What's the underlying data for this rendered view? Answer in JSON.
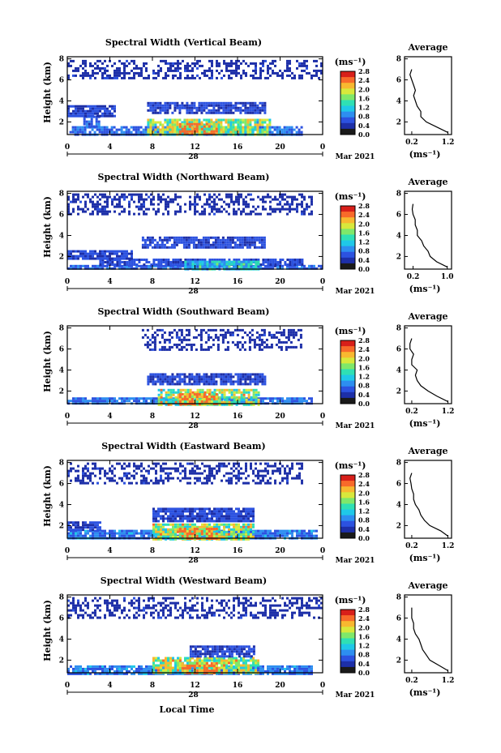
{
  "figure": {
    "xlabel": "Local Time",
    "date_day": "28",
    "date_month_year": "Mar 2021",
    "ylabel": "Height (km)",
    "units": "(ms⁻¹)",
    "avg_title": "Average",
    "avg_xlabel": "(ms⁻¹)"
  },
  "colormap": [
    "#1a1a1a",
    "#1d2fa8",
    "#2c52e0",
    "#2d8ef0",
    "#1fc8e8",
    "#2fe0b4",
    "#7fe86a",
    "#d8e83c",
    "#f8b830",
    "#f86a2a",
    "#d81f1a"
  ],
  "chart_data": [
    {
      "type": "heatmap",
      "title": "Spectral Width (Vertical Beam)",
      "x_ticks": [
        "0",
        "4",
        "8",
        "12",
        "16",
        "20",
        "0"
      ],
      "y_ticks": [
        "2",
        "4",
        "6",
        "8"
      ],
      "xlim": [
        0,
        24
      ],
      "ylim": [
        0.8,
        8.2
      ],
      "colorbar_ticks": [
        "2.8",
        "2.4",
        "2.0",
        "1.6",
        "1.2",
        "0.8",
        "0.4",
        "0.0"
      ],
      "colorbar_range": [
        0,
        2.8
      ],
      "layers": [
        {
          "t0": 0.2,
          "t1": 22,
          "h0": 0.8,
          "h1": 1.6,
          "level": 0.55
        },
        {
          "t0": 1.5,
          "t1": 3,
          "h0": 1.6,
          "h1": 2.6,
          "level": 0.5
        },
        {
          "t0": 7.5,
          "t1": 19,
          "h0": 0.8,
          "h1": 2.3,
          "level": 1.5
        },
        {
          "t0": 10.5,
          "t1": 14,
          "h0": 0.8,
          "h1": 1.9,
          "level": 2.4
        },
        {
          "t0": 0,
          "t1": 4.5,
          "h0": 2.6,
          "h1": 3.6,
          "level": 0.3
        },
        {
          "t0": 7.5,
          "t1": 18.5,
          "h0": 2.9,
          "h1": 3.9,
          "level": 0.3
        },
        {
          "t0": 0,
          "t1": 24,
          "h0": 6.1,
          "h1": 7.9,
          "level": 0.2
        }
      ],
      "average_profile": {
        "x_ticks": [
          "0.2",
          "1.2"
        ],
        "xlim": [
          0,
          1.3
        ],
        "y_ticks": [
          "2",
          "4",
          "6",
          "8"
        ],
        "ylim": [
          0.8,
          8.2
        ],
        "heights": [
          1.0,
          1.5,
          2.0,
          2.5,
          3.0,
          3.5,
          4.0,
          4.5,
          5.0,
          5.5,
          6.0,
          6.5,
          7.0
        ],
        "values": [
          1.2,
          0.9,
          0.6,
          0.45,
          0.45,
          0.35,
          0.3,
          0.25,
          0.3,
          0.25,
          0.2,
          0.15,
          0.2
        ]
      }
    },
    {
      "type": "heatmap",
      "title": "Spectral Width (Northward Beam)",
      "x_ticks": [
        "0",
        "4",
        "8",
        "12",
        "16",
        "20",
        "0"
      ],
      "y_ticks": [
        "2",
        "4",
        "6",
        "8"
      ],
      "xlim": [
        0,
        24
      ],
      "ylim": [
        0.8,
        8.2
      ],
      "colorbar_ticks": [
        "2.8",
        "2.4",
        "2.0",
        "1.6",
        "1.2",
        "0.8",
        "0.4",
        "0.0"
      ],
      "colorbar_range": [
        0,
        2.8
      ],
      "layers": [
        {
          "t0": 0,
          "t1": 24,
          "h0": 0.8,
          "h1": 1.2,
          "level": 0.5
        },
        {
          "t0": 3,
          "t1": 22,
          "h0": 1.2,
          "h1": 1.8,
          "level": 0.35
        },
        {
          "t0": 11,
          "t1": 18,
          "h0": 0.8,
          "h1": 1.6,
          "level": 1.0
        },
        {
          "t0": 0,
          "t1": 6,
          "h0": 1.8,
          "h1": 2.6,
          "level": 0.3
        },
        {
          "t0": 7,
          "t1": 18.5,
          "h0": 2.8,
          "h1": 3.9,
          "level": 0.35
        },
        {
          "t0": 0,
          "t1": 23,
          "h0": 6.0,
          "h1": 8.0,
          "level": 0.2
        }
      ],
      "average_profile": {
        "x_ticks": [
          "0.2",
          "1.0"
        ],
        "xlim": [
          0,
          1.1
        ],
        "y_ticks": [
          "2",
          "4",
          "6",
          "8"
        ],
        "ylim": [
          0.8,
          8.2
        ],
        "heights": [
          1.0,
          1.5,
          2.0,
          2.5,
          3.0,
          3.5,
          4.0,
          4.5,
          5.0,
          5.5,
          6.0,
          6.5,
          7.0
        ],
        "values": [
          1.0,
          0.75,
          0.6,
          0.55,
          0.45,
          0.4,
          0.3,
          0.3,
          0.25,
          0.25,
          0.2,
          0.18,
          0.2
        ]
      }
    },
    {
      "type": "heatmap",
      "title": "Spectral Width (Southward Beam)",
      "x_ticks": [
        "0",
        "4",
        "8",
        "12",
        "16",
        "20",
        "0"
      ],
      "y_ticks": [
        "2",
        "4",
        "6",
        "8"
      ],
      "xlim": [
        0,
        24
      ],
      "ylim": [
        0.8,
        8.2
      ],
      "colorbar_ticks": [
        "2.8",
        "2.4",
        "2.0",
        "1.6",
        "1.2",
        "0.8",
        "0.4",
        "0.0"
      ],
      "colorbar_range": [
        0,
        2.8
      ],
      "layers": [
        {
          "t0": 0,
          "t1": 23,
          "h0": 0.8,
          "h1": 1.4,
          "level": 0.55
        },
        {
          "t0": 8.5,
          "t1": 18,
          "h0": 0.8,
          "h1": 2.2,
          "level": 1.6
        },
        {
          "t0": 10.5,
          "t1": 14,
          "h0": 0.8,
          "h1": 1.8,
          "level": 2.4
        },
        {
          "t0": 7.5,
          "t1": 18.5,
          "h0": 2.6,
          "h1": 3.7,
          "level": 0.3
        },
        {
          "t0": 7,
          "t1": 22,
          "h0": 6.0,
          "h1": 7.9,
          "level": 0.2
        }
      ],
      "average_profile": {
        "x_ticks": [
          "0.2",
          "1.2"
        ],
        "xlim": [
          0,
          1.3
        ],
        "y_ticks": [
          "2",
          "4",
          "6",
          "8"
        ],
        "ylim": [
          0.8,
          8.2
        ],
        "heights": [
          1.0,
          1.5,
          2.0,
          2.5,
          3.0,
          3.5,
          4.0,
          4.5,
          5.0,
          5.5,
          6.0,
          6.5,
          7.0
        ],
        "values": [
          1.2,
          0.9,
          0.65,
          0.45,
          0.35,
          0.3,
          0.35,
          0.2,
          0.2,
          0.25,
          0.15,
          0.15,
          0.2
        ]
      }
    },
    {
      "type": "heatmap",
      "title": "Spectral Width (Eastward Beam)",
      "x_ticks": [
        "0",
        "4",
        "8",
        "12",
        "16",
        "20",
        "0"
      ],
      "y_ticks": [
        "2",
        "4",
        "6",
        "8"
      ],
      "xlim": [
        0,
        24
      ],
      "ylim": [
        0.8,
        8.2
      ],
      "colorbar_ticks": [
        "2.8",
        "2.4",
        "2.0",
        "1.6",
        "1.2",
        "0.8",
        "0.4",
        "0.0"
      ],
      "colorbar_range": [
        0,
        2.8
      ],
      "layers": [
        {
          "t0": 0,
          "t1": 23.5,
          "h0": 0.8,
          "h1": 1.6,
          "level": 0.6
        },
        {
          "t0": 8,
          "t1": 17.5,
          "h0": 0.8,
          "h1": 2.2,
          "level": 1.6
        },
        {
          "t0": 10.5,
          "t1": 14,
          "h0": 0.8,
          "h1": 1.8,
          "level": 2.3
        },
        {
          "t0": 0,
          "t1": 3,
          "h0": 1.6,
          "h1": 2.4,
          "level": 0.3
        },
        {
          "t0": 8,
          "t1": 17.5,
          "h0": 2.5,
          "h1": 3.7,
          "level": 0.3
        },
        {
          "t0": 0,
          "t1": 22,
          "h0": 6.0,
          "h1": 8.0,
          "level": 0.2
        }
      ],
      "average_profile": {
        "x_ticks": [
          "0.2",
          "1.2"
        ],
        "xlim": [
          0,
          1.3
        ],
        "y_ticks": [
          "2",
          "4",
          "6",
          "8"
        ],
        "ylim": [
          0.8,
          8.2
        ],
        "heights": [
          1.0,
          1.5,
          2.0,
          2.5,
          3.0,
          3.5,
          4.0,
          4.5,
          5.0,
          5.5,
          6.0,
          6.5,
          7.0
        ],
        "values": [
          1.2,
          1.0,
          0.7,
          0.55,
          0.45,
          0.4,
          0.3,
          0.25,
          0.25,
          0.2,
          0.18,
          0.15,
          0.2
        ]
      }
    },
    {
      "type": "heatmap",
      "title": "Spectral Width (Westward Beam)",
      "x_ticks": [
        "0",
        "4",
        "8",
        "12",
        "16",
        "20",
        "0"
      ],
      "y_ticks": [
        "2",
        "4",
        "6",
        "8"
      ],
      "xlim": [
        0,
        24
      ],
      "ylim": [
        0.8,
        8.2
      ],
      "colorbar_ticks": [
        "2.8",
        "2.4",
        "2.0",
        "1.6",
        "1.2",
        "0.8",
        "0.4",
        "0.0"
      ],
      "colorbar_range": [
        0,
        2.8
      ],
      "layers": [
        {
          "t0": 0,
          "t1": 23,
          "h0": 0.8,
          "h1": 1.5,
          "level": 0.6
        },
        {
          "t0": 8,
          "t1": 18,
          "h0": 0.8,
          "h1": 2.3,
          "level": 1.6
        },
        {
          "t0": 10.5,
          "t1": 14,
          "h0": 0.8,
          "h1": 1.8,
          "level": 2.4
        },
        {
          "t0": 11.5,
          "t1": 17.5,
          "h0": 2.3,
          "h1": 3.4,
          "level": 0.3
        },
        {
          "t0": 0,
          "t1": 24,
          "h0": 6.0,
          "h1": 8.0,
          "level": 0.2
        }
      ],
      "average_profile": {
        "x_ticks": [
          "0.2",
          "1.2"
        ],
        "xlim": [
          0,
          1.3
        ],
        "y_ticks": [
          "2",
          "4",
          "6",
          "8"
        ],
        "ylim": [
          0.8,
          8.2
        ],
        "heights": [
          1.0,
          1.5,
          2.0,
          2.5,
          3.0,
          3.5,
          4.0,
          4.5,
          5.0,
          5.5,
          6.0,
          6.5,
          7.0
        ],
        "values": [
          1.2,
          0.95,
          0.7,
          0.6,
          0.5,
          0.45,
          0.4,
          0.3,
          0.25,
          0.25,
          0.2,
          0.2,
          0.2
        ]
      }
    }
  ]
}
